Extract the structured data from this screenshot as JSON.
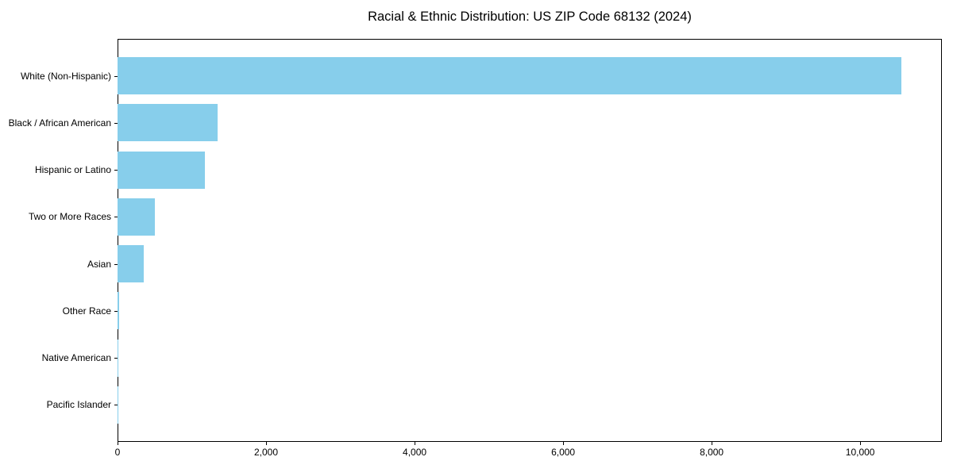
{
  "title": "Racial & Ethnic Distribution: US ZIP Code 68132 (2024)",
  "colors": {
    "bar": "#87CEEB",
    "axis": "#000000",
    "background": "#FFFFFF",
    "text": "#000000"
  },
  "chart_data": {
    "type": "bar",
    "orientation": "horizontal",
    "title": "Racial & Ethnic Distribution: US ZIP Code 68132 (2024)",
    "categories": [
      "White (Non-Hispanic)",
      "Black / African American",
      "Hispanic or Latino",
      "Two or More Races",
      "Asian",
      "Other Race",
      "Native American",
      "Pacific Islander"
    ],
    "values": [
      10550,
      1345,
      1175,
      505,
      355,
      20,
      10,
      5
    ],
    "xlabel": "",
    "ylabel": "",
    "xlim": [
      0,
      11100
    ],
    "xticks": {
      "values": [
        0,
        2000,
        4000,
        6000,
        8000,
        10000
      ],
      "labels": [
        "0",
        "2,000",
        "4,000",
        "6,000",
        "8,000",
        "10,000"
      ]
    },
    "grid": false,
    "legend": null,
    "bar_color": "#87CEEB"
  }
}
